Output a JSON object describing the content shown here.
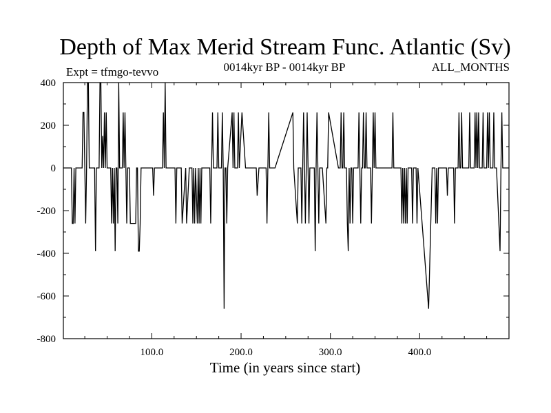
{
  "chart_data": {
    "type": "line",
    "title": "Depth of Max Merid Stream Func. Atlantic (Sv)",
    "subtitle_left": "Expt = tfmgo-tevvo",
    "subtitle_center": "0014kyr BP - 0014kyr BP",
    "subtitle_right": "ALL_MONTHS",
    "xlabel": "Time (in years since start)",
    "ylabel": "",
    "xlim": [
      1,
      500
    ],
    "ylim": [
      -800,
      400
    ],
    "x_ticks": [
      100,
      200,
      300,
      400
    ],
    "x_tick_labels": [
      "100.0",
      "200.0",
      "300.0",
      "400.0"
    ],
    "y_ticks": [
      400,
      200,
      0,
      -200,
      -400,
      -600,
      -800
    ],
    "y_tick_labels": [
      "400",
      "200",
      "0",
      "-200",
      "-400",
      "-600",
      "-800"
    ],
    "grid": false,
    "line_color": "#000000",
    "series": [
      {
        "x": [
          1,
          10,
          11,
          12,
          13,
          14,
          15,
          22,
          23,
          24,
          25,
          26,
          27,
          28,
          29,
          30,
          31,
          32,
          33,
          34,
          35,
          36,
          37,
          38,
          39,
          40,
          41,
          42,
          43,
          44,
          45,
          46,
          47,
          48,
          49,
          50,
          51,
          52,
          53,
          54,
          55,
          56,
          57,
          58,
          59,
          60,
          61,
          62,
          63,
          64,
          65,
          66,
          67,
          68,
          69,
          70,
          71,
          72,
          73,
          74,
          75,
          76,
          77,
          78,
          79,
          80,
          81,
          82,
          83,
          84,
          85,
          86,
          87,
          88,
          92,
          101,
          102,
          103,
          106,
          112,
          113,
          114,
          115,
          116,
          117,
          118,
          126,
          127,
          128,
          133,
          134,
          138,
          139,
          142,
          145,
          146,
          147,
          148,
          149,
          151,
          152,
          153,
          154,
          155,
          156,
          160,
          165,
          166,
          167,
          168,
          169,
          173,
          174,
          175,
          178,
          179,
          180,
          181,
          182,
          183,
          184,
          185,
          190,
          191,
          192,
          193,
          194,
          195,
          196,
          197,
          198,
          201,
          205,
          206,
          208,
          215,
          216,
          217,
          218,
          220,
          228,
          229,
          230,
          231,
          232,
          238,
          258,
          259,
          263,
          264,
          265,
          266,
          267,
          268,
          269,
          270,
          271,
          272,
          273,
          274,
          275,
          276,
          277,
          278,
          279,
          282,
          283,
          284,
          285,
          286,
          287,
          288,
          289,
          290,
          291,
          295,
          296,
          297,
          298,
          309,
          310,
          311,
          312,
          313,
          314,
          315,
          316,
          317,
          318,
          319,
          320,
          321,
          322,
          323,
          324,
          325,
          326,
          327,
          328,
          329,
          330,
          331,
          332,
          333,
          334,
          335,
          336,
          337,
          338,
          339,
          340,
          341,
          342,
          343,
          344,
          345,
          346,
          347,
          348,
          349,
          350,
          351,
          352,
          353,
          354,
          355,
          356,
          357,
          358,
          359,
          360,
          361,
          362,
          363,
          364,
          365,
          366,
          367,
          368,
          369,
          370,
          371,
          378,
          379,
          380,
          381,
          382,
          383,
          384,
          385,
          386,
          387,
          388,
          389,
          390,
          391,
          392,
          393,
          394,
          395,
          396,
          397,
          398,
          410,
          414,
          415,
          416,
          417,
          418,
          419,
          420,
          421,
          422,
          423,
          424,
          425,
          430,
          431,
          432,
          433,
          434,
          435,
          436,
          437,
          438,
          439,
          440,
          441,
          442,
          443,
          444,
          445,
          446,
          447,
          448,
          449,
          450,
          451,
          452,
          453,
          454,
          455,
          456,
          457,
          458,
          459,
          460,
          461,
          462,
          463,
          464,
          465,
          466,
          467,
          468,
          469,
          470,
          471,
          472,
          473,
          474,
          475,
          476,
          477,
          478,
          479,
          480,
          481,
          482,
          483,
          484,
          485,
          486,
          490,
          491,
          492,
          493,
          494,
          495,
          496,
          497,
          498,
          499,
          500
        ],
        "y": [
          0,
          0,
          -260,
          -260,
          0,
          -260,
          0,
          0,
          260,
          260,
          0,
          -260,
          0,
          400,
          400,
          0,
          0,
          0,
          0,
          0,
          0,
          0,
          -390,
          0,
          0,
          0,
          0,
          400,
          400,
          0,
          150,
          0,
          260,
          0,
          260,
          0,
          0,
          0,
          0,
          0,
          -260,
          0,
          -260,
          0,
          -390,
          0,
          0,
          -260,
          400,
          0,
          0,
          0,
          0,
          260,
          0,
          260,
          0,
          -260,
          0,
          0,
          0,
          -260,
          -260,
          -260,
          -260,
          -260,
          -260,
          -260,
          0,
          0,
          -390,
          -390,
          -260,
          0,
          0,
          0,
          -130,
          0,
          0,
          0,
          260,
          0,
          400,
          0,
          0,
          0,
          0,
          -260,
          0,
          0,
          -260,
          0,
          -260,
          0,
          0,
          -260,
          0,
          -260,
          0,
          -260,
          0,
          -260,
          0,
          -260,
          0,
          0,
          0,
          -260,
          0,
          260,
          0,
          0,
          260,
          0,
          0,
          260,
          0,
          -660,
          0,
          0,
          -260,
          0,
          260,
          0,
          260,
          0,
          0,
          0,
          0,
          260,
          0,
          260,
          0,
          0,
          0,
          0,
          0,
          0,
          -130,
          0,
          0,
          -260,
          0,
          260,
          0,
          0,
          260,
          0,
          -260,
          0,
          0,
          0,
          0,
          -260,
          0,
          260,
          0,
          -260,
          0,
          260,
          0,
          -260,
          0,
          0,
          0,
          0,
          -390,
          0,
          260,
          0,
          -260,
          0,
          0,
          0,
          0,
          -260,
          0,
          0,
          260,
          0,
          0,
          0,
          260,
          0,
          0,
          260,
          0,
          0,
          0,
          -260,
          -390,
          0,
          -260,
          0,
          0,
          -260,
          0,
          0,
          0,
          0,
          0,
          0,
          260,
          0,
          -260,
          0,
          0,
          260,
          0,
          0,
          260,
          0,
          0,
          0,
          0,
          0,
          -260,
          0,
          260,
          0,
          260,
          0,
          0,
          0,
          0,
          0,
          0,
          0,
          0,
          0,
          0,
          0,
          0,
          0,
          0,
          0,
          0,
          0,
          0,
          0,
          260,
          0,
          0,
          0,
          -260,
          0,
          -260,
          0,
          -260,
          0,
          -260,
          0,
          0,
          0,
          0,
          0,
          -260,
          0,
          0,
          0,
          0,
          -260,
          0,
          -660,
          0,
          0,
          0,
          0,
          -260,
          0,
          -260,
          0,
          0,
          0,
          0,
          0,
          0,
          -130,
          0,
          0,
          0,
          0,
          0,
          0,
          0,
          -260,
          0,
          0,
          0,
          0,
          260,
          0,
          0,
          260,
          0,
          0,
          0,
          0,
          0,
          0,
          0,
          0,
          260,
          0,
          0,
          0,
          0,
          0,
          260,
          0,
          260,
          0,
          260,
          0,
          0,
          0,
          0,
          260,
          0,
          0,
          0,
          0,
          260,
          0,
          260,
          0,
          0,
          0,
          0,
          260,
          0,
          0,
          0,
          -390,
          0,
          260,
          0,
          0,
          0,
          0,
          0,
          0,
          0,
          0
        ]
      }
    ]
  }
}
